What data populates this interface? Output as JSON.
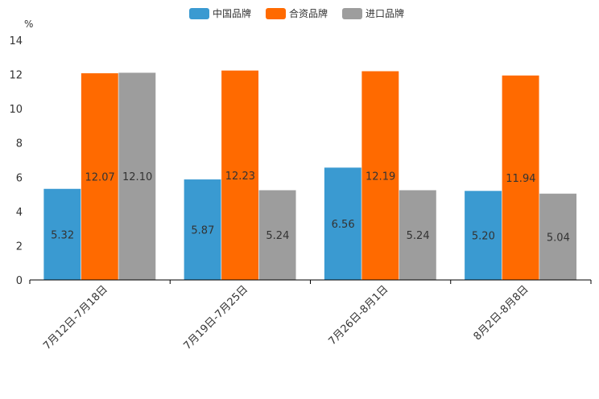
{
  "chart_data": {
    "type": "bar",
    "unit_label": "%",
    "categories": [
      "7月12日-7月18日",
      "7月19日-7月25日",
      "7月26日-8月1日",
      "8月2日-8月8日"
    ],
    "series": [
      {
        "name": "中国品牌",
        "color": "#3a9ad1",
        "values": [
          5.32,
          5.87,
          6.56,
          5.2
        ],
        "labels": [
          "5.32",
          "5.87",
          "6.56",
          "5.20"
        ]
      },
      {
        "name": "合资品牌",
        "color": "#ff6a00",
        "values": [
          12.07,
          12.23,
          12.19,
          11.94
        ],
        "labels": [
          "12.07",
          "12.23",
          "12.19",
          "11.94"
        ]
      },
      {
        "name": "进口品牌",
        "color": "#9d9d9d",
        "values": [
          12.1,
          5.24,
          5.24,
          5.04
        ],
        "labels": [
          "12.10",
          "5.24",
          "5.24",
          "5.04"
        ]
      }
    ],
    "ylim": [
      0,
      14
    ],
    "yticks": [
      "0",
      "2",
      "4",
      "6",
      "8",
      "10",
      "12",
      "14"
    ],
    "legend_position": "top-center",
    "grid": false
  }
}
